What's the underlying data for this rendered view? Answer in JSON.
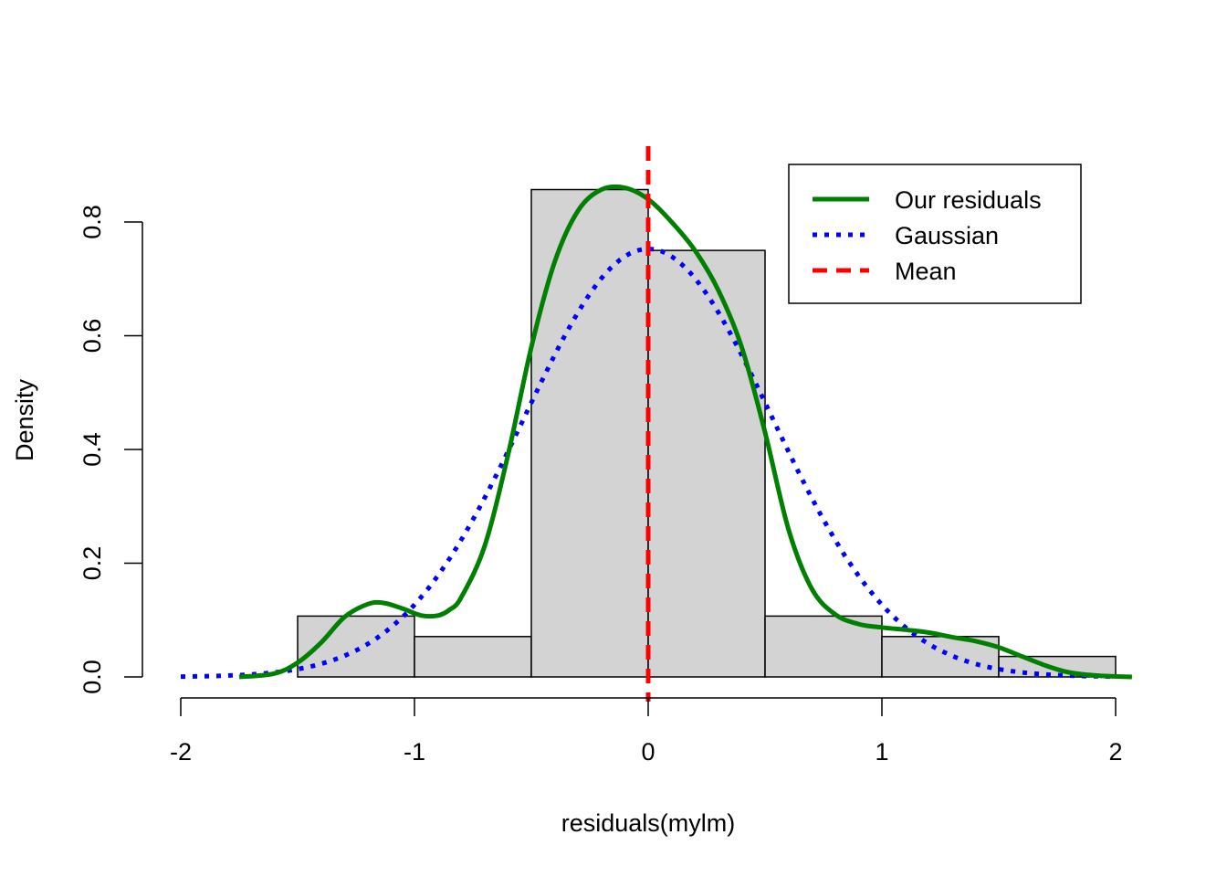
{
  "chart_data": {
    "type": "bar",
    "xlabel": "residuals(mylm)",
    "ylabel": "Density",
    "xlim": [
      -2,
      2
    ],
    "ylim": [
      0,
      0.8
    ],
    "x_ticks": [
      "-2",
      "-1",
      "0",
      "1",
      "2"
    ],
    "y_ticks": [
      "0.0",
      "0.2",
      "0.4",
      "0.6",
      "0.8"
    ],
    "histogram": {
      "bin_edges": [
        -1.5,
        -1.0,
        -0.5,
        0.0,
        0.5,
        1.0,
        1.5,
        2.0
      ],
      "densities": [
        0.107,
        0.071,
        0.857,
        0.75,
        0.107,
        0.071,
        0.036
      ],
      "fill_color": "#d3d3d3",
      "border_color": "#000000"
    },
    "series": [
      {
        "name": "Our residuals",
        "style": "solid",
        "color": "#008000",
        "x": [
          -1.75,
          -1.6,
          -1.5,
          -1.4,
          -1.3,
          -1.2,
          -1.13,
          -1.05,
          -0.97,
          -0.9,
          -0.85,
          -0.8,
          -0.7,
          -0.6,
          -0.5,
          -0.4,
          -0.3,
          -0.2,
          -0.1,
          0.0,
          0.1,
          0.2,
          0.3,
          0.4,
          0.5,
          0.6,
          0.7,
          0.8,
          0.9,
          1.0,
          1.1,
          1.2,
          1.3,
          1.4,
          1.5,
          1.6,
          1.7,
          1.8,
          1.9,
          2.0,
          2.07
        ],
        "y": [
          0.0,
          0.006,
          0.025,
          0.06,
          0.105,
          0.128,
          0.13,
          0.12,
          0.108,
          0.108,
          0.118,
          0.14,
          0.23,
          0.39,
          0.58,
          0.73,
          0.82,
          0.857,
          0.86,
          0.84,
          0.8,
          0.75,
          0.68,
          0.58,
          0.43,
          0.26,
          0.155,
          0.11,
          0.093,
          0.087,
          0.083,
          0.078,
          0.07,
          0.063,
          0.052,
          0.036,
          0.02,
          0.008,
          0.003,
          0.001,
          0.0
        ]
      },
      {
        "name": "Gaussian",
        "style": "dotted",
        "color": "#0000ff",
        "mean": 0.0,
        "sd": 0.53,
        "x_range": [
          -2.0,
          2.0
        ]
      },
      {
        "name": "Mean",
        "style": "dashed",
        "color": "#ff0000",
        "x": 0.0
      }
    ],
    "legend": {
      "position": "top-right",
      "entries": [
        "Our residuals",
        "Gaussian",
        "Mean"
      ]
    }
  }
}
